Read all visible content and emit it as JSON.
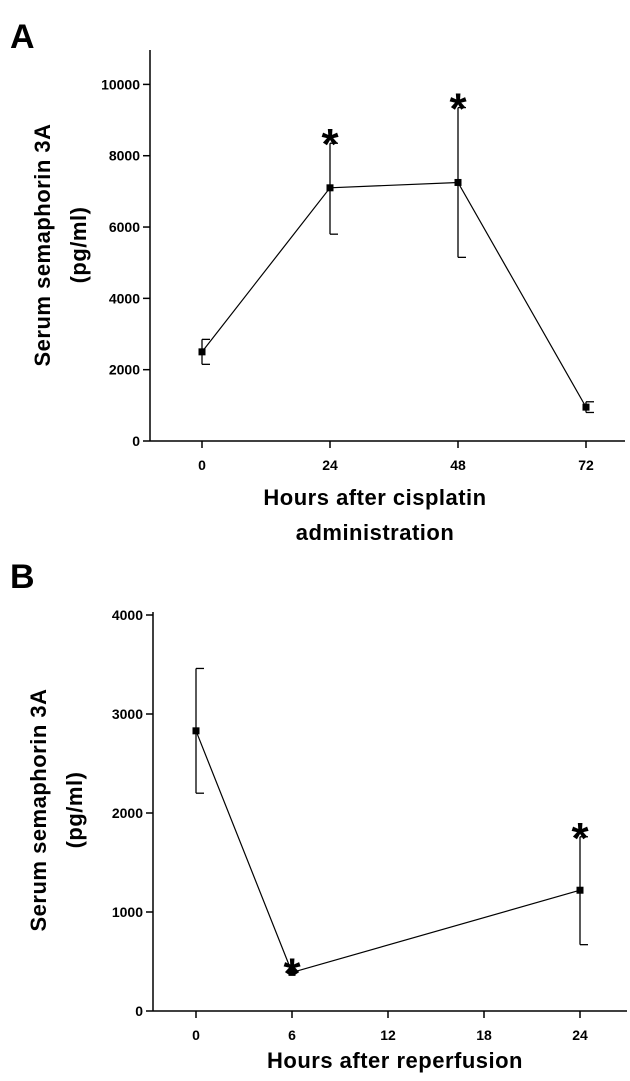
{
  "chart_data": [
    {
      "panel_label": "A",
      "type": "line",
      "xlabel_lines": [
        "Hours after cisplatin",
        "administration"
      ],
      "ylabel_lines": [
        "Serum semaphorin 3A",
        "(pg/ml)"
      ],
      "x_ticks": [
        "0",
        "24",
        "48",
        "72"
      ],
      "y_ticks": [
        "0",
        "2000",
        "4000",
        "6000",
        "8000",
        "10000"
      ],
      "ylim": [
        0,
        11000
      ],
      "series": [
        {
          "x": [
            0,
            24,
            48,
            72
          ],
          "values": [
            2500,
            7100,
            7250,
            950
          ],
          "err_low": [
            2150,
            5800,
            5150,
            800
          ],
          "err_high": [
            2850,
            8350,
            9350,
            1100
          ],
          "significance": [
            "",
            "*",
            "*",
            ""
          ]
        }
      ]
    },
    {
      "panel_label": "B",
      "type": "line",
      "xlabel_lines": [
        "Hours after reperfusion"
      ],
      "ylabel_lines": [
        "Serum semaphorin 3A",
        "(pg/ml)"
      ],
      "x_ticks": [
        "0",
        "6",
        "12",
        "18",
        "24"
      ],
      "y_ticks": [
        "0",
        "1000",
        "2000",
        "3000",
        "4000"
      ],
      "ylim": [
        0,
        4000
      ],
      "series": [
        {
          "x": [
            0,
            6,
            24
          ],
          "values": [
            2830,
            390,
            1220
          ],
          "err_low": [
            2200,
            390,
            670
          ],
          "err_high": [
            3460,
            390,
            1760
          ],
          "significance": [
            "",
            "*",
            "*"
          ]
        }
      ]
    }
  ]
}
